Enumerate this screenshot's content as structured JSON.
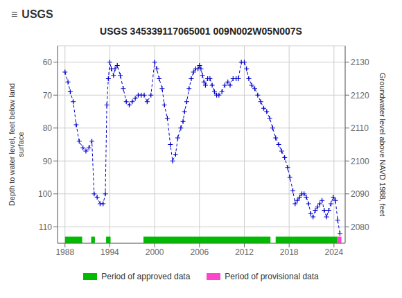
{
  "chart_data": {
    "type": "line",
    "title": "USGS 345339117065001 009N002W05N007S",
    "annotations": [
      "≡",
      "USGS"
    ],
    "ylabel": "Depth to water level, feet below land\nsurface",
    "y2label": "Groundwater level above NAVD 1988, feet",
    "x": [
      1988.0,
      1988.4,
      1988.7,
      1989.1,
      1989.5,
      1989.9,
      1990.4,
      1990.8,
      1991.2,
      1991.6,
      1991.9,
      1992.3,
      1992.7,
      1993.1,
      1993.4,
      1993.6,
      1993.8,
      1994.0,
      1994.2,
      1994.5,
      1994.7,
      1995.0,
      1995.4,
      1995.8,
      1996.2,
      1996.6,
      1997.0,
      1997.4,
      1997.8,
      1998.2,
      1998.6,
      1999.0,
      1999.5,
      2000.0,
      2000.3,
      2000.6,
      2001.0,
      2001.3,
      2001.7,
      2002.1,
      2002.4,
      2002.8,
      2003.1,
      2003.5,
      2003.8,
      2004.0,
      2004.3,
      2004.6,
      2004.9,
      2005.2,
      2005.5,
      2005.8,
      2006.0,
      2006.2,
      2006.4,
      2006.6,
      2006.8,
      2007.1,
      2007.4,
      2007.7,
      2008.0,
      2008.3,
      2008.6,
      2009.0,
      2009.4,
      2009.8,
      2010.1,
      2010.5,
      2010.9,
      2011.2,
      2011.6,
      2012.0,
      2012.3,
      2012.6,
      2013.0,
      2013.4,
      2013.8,
      2014.2,
      2014.6,
      2015.0,
      2015.4,
      2015.8,
      2016.2,
      2016.6,
      2017.0,
      2017.4,
      2017.8,
      2018.1,
      2018.5,
      2018.8,
      2019.1,
      2019.4,
      2019.7,
      2020.0,
      2020.3,
      2020.6,
      2020.9,
      2021.2,
      2021.5,
      2021.8,
      2022.1,
      2022.4,
      2022.7,
      2023.0,
      2023.3,
      2023.6,
      2023.9,
      2024.2,
      2024.5,
      2024.8
    ],
    "values": [
      63,
      66,
      69,
      72,
      79,
      84,
      86,
      87,
      86,
      84,
      100,
      101,
      103,
      103,
      100,
      73,
      65,
      60,
      62,
      64,
      62,
      61,
      64,
      68,
      72,
      73,
      72,
      71,
      70,
      70,
      70,
      72,
      70,
      60,
      62,
      65,
      68,
      73,
      77,
      85,
      90,
      88,
      83,
      80,
      78,
      75,
      72,
      68,
      65,
      63,
      62,
      62,
      61,
      62,
      64,
      66,
      67,
      65,
      65,
      67,
      69,
      70,
      70,
      69,
      67,
      66,
      67,
      65,
      65,
      65,
      60,
      60,
      62,
      65,
      67,
      68,
      70,
      72,
      74,
      75,
      77,
      80,
      83,
      85,
      87,
      89,
      92,
      95,
      99,
      103,
      102,
      101,
      100,
      100,
      101,
      103,
      106,
      107,
      105,
      104,
      103,
      102,
      105,
      107,
      105,
      103,
      101,
      102,
      108,
      112
    ],
    "color": "#0000cc",
    "line_style": "dashed",
    "marker": "plus",
    "xlim": [
      1987.0,
      2025.5
    ],
    "xticks": [
      1988,
      1994,
      2000,
      2006,
      2012,
      2018,
      2024
    ],
    "ylim": [
      55,
      115
    ],
    "yticks": [
      60,
      70,
      80,
      90,
      100,
      110
    ],
    "y2lim": [
      2075,
      2135
    ],
    "y2ticks": [
      2080,
      2090,
      2100,
      2110,
      2120,
      2130
    ],
    "grid": true,
    "periods": [
      {
        "name": "Period of approved data",
        "color": "#00bb00",
        "ranges": [
          [
            1988.0,
            1990.3
          ],
          [
            1991.5,
            1992.0
          ],
          [
            1993.5,
            1994.1
          ],
          [
            1998.5,
            2015.5
          ],
          [
            2016.2,
            2024.4
          ]
        ]
      },
      {
        "name": "Period of provisional data",
        "color": "#ff44cc",
        "ranges": [
          [
            2024.4,
            2025.0
          ]
        ]
      }
    ]
  }
}
